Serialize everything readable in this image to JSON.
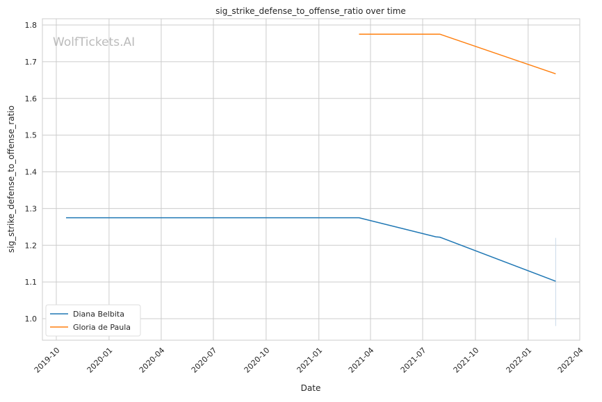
{
  "chart_data": {
    "type": "line",
    "title": "sig_strike_defense_to_offense_ratio over time",
    "xlabel": "Date",
    "ylabel": "sig_strike_defense_to_offense_ratio",
    "watermark": "WolfTickets.AI",
    "xlim": [
      "2019-09-08",
      "2022-04-05"
    ],
    "ylim": [
      0.942,
      1.82
    ],
    "x_ticks": [
      "2019-10",
      "2020-01",
      "2020-04",
      "2020-07",
      "2020-10",
      "2021-01",
      "2021-04",
      "2021-07",
      "2021-10",
      "2022-01",
      "2022-04"
    ],
    "y_ticks": [
      "1.0",
      "1.1",
      "1.2",
      "1.3",
      "1.4",
      "1.5",
      "1.6",
      "1.7",
      "1.8"
    ],
    "grid": true,
    "legend_position": "lower-left",
    "series": [
      {
        "name": "Diana Belbita",
        "color": "#1f77b4",
        "x": [
          "2019-10-18",
          "2021-03-12",
          "2021-07-24",
          "2021-07-31",
          "2022-02-18"
        ],
        "y": [
          1.275,
          1.275,
          1.223,
          1.222,
          1.102
        ]
      },
      {
        "name": "Gloria de Paula",
        "color": "#ff7f0e",
        "x": [
          "2021-03-12",
          "2021-07-31",
          "2022-02-18"
        ],
        "y": [
          1.775,
          1.775,
          1.667
        ]
      }
    ],
    "annotations": [
      {
        "type": "vertical-range",
        "x": "2022-02-18",
        "y": [
          0.98,
          1.22
        ],
        "color": "#c8d8e8"
      }
    ]
  }
}
